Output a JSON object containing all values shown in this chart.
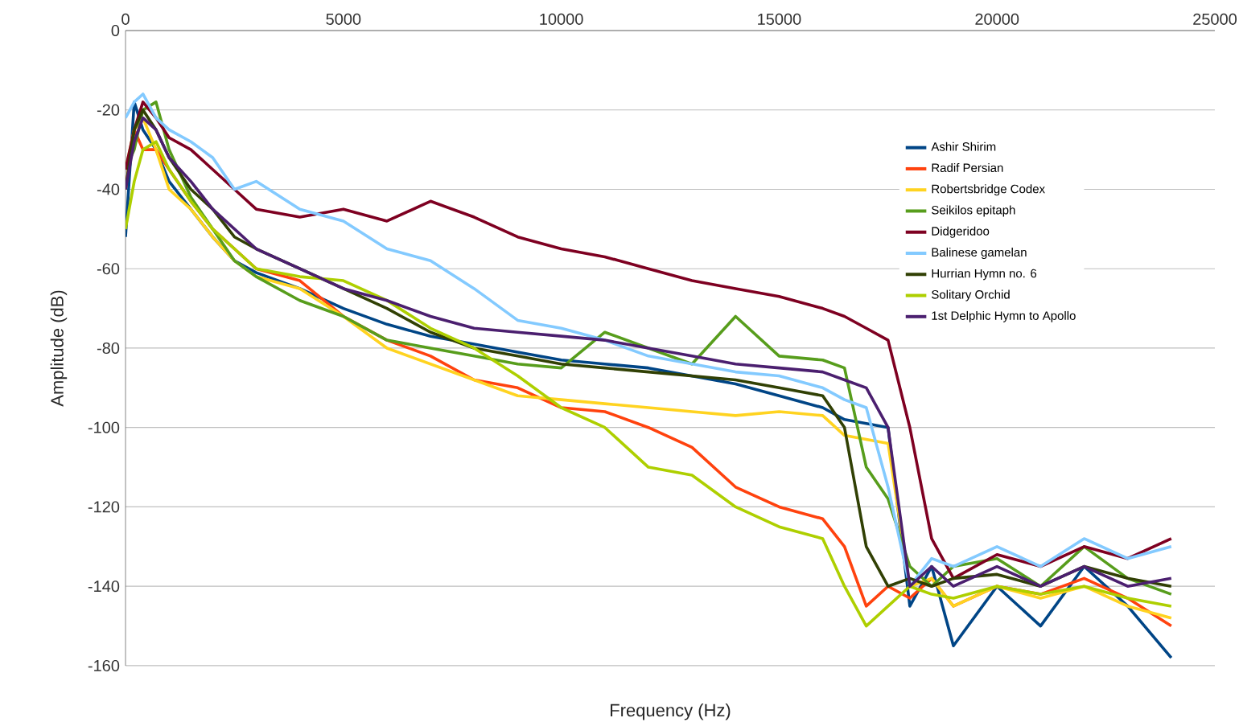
{
  "chart_data": {
    "type": "line",
    "xlabel": "Frequency (Hz)",
    "ylabel": "Amplitude (dB)",
    "xlim": [
      0,
      25000
    ],
    "ylim": [
      -160,
      0
    ],
    "xticks": [
      0,
      5000,
      10000,
      15000,
      20000,
      25000
    ],
    "yticks": [
      -160,
      -140,
      -120,
      -100,
      -80,
      -60,
      -40,
      -20,
      0
    ],
    "grid": "y",
    "legend": "right",
    "x": [
      0,
      200,
      400,
      700,
      1000,
      1500,
      2000,
      2500,
      3000,
      4000,
      5000,
      6000,
      7000,
      8000,
      9000,
      10000,
      11000,
      12000,
      13000,
      14000,
      15000,
      16000,
      16500,
      17000,
      17500,
      18000,
      18500,
      19000,
      20000,
      21000,
      22000,
      23000,
      24000
    ],
    "series": [
      {
        "name": "Ashir Shirim",
        "color": "#004586",
        "values": [
          -52,
          -18,
          -25,
          -30,
          -38,
          -45,
          -52,
          -58,
          -61,
          -65,
          -70,
          -74,
          -77,
          -79,
          -81,
          -83,
          -84,
          -85,
          -87,
          -89,
          -92,
          -95,
          -98,
          -99,
          -100,
          -145,
          -135,
          -155,
          -140,
          -150,
          -135,
          -145,
          -158
        ]
      },
      {
        "name": "Radif Persian",
        "color": "#ff420e",
        "values": [
          -40,
          -25,
          -30,
          -30,
          -35,
          -43,
          -50,
          -55,
          -60,
          -63,
          -72,
          -78,
          -82,
          -88,
          -90,
          -95,
          -96,
          -100,
          -105,
          -115,
          -120,
          -123,
          -130,
          -145,
          -140,
          -143,
          -138,
          -145,
          -140,
          -142,
          -138,
          -143,
          -150
        ]
      },
      {
        "name": "Robertsbridge Codex",
        "color": "#ffd320",
        "values": [
          -35,
          -25,
          -22,
          -30,
          -40,
          -45,
          -52,
          -58,
          -62,
          -65,
          -72,
          -80,
          -84,
          -88,
          -92,
          -93,
          -94,
          -95,
          -96,
          -97,
          -96,
          -97,
          -102,
          -103,
          -104,
          -140,
          -138,
          -145,
          -140,
          -143,
          -140,
          -145,
          -148
        ]
      },
      {
        "name": "Seikilos epitaph",
        "color": "#579d1c",
        "values": [
          -35,
          -30,
          -20,
          -18,
          -30,
          -42,
          -50,
          -58,
          -62,
          -68,
          -72,
          -78,
          -80,
          -82,
          -84,
          -85,
          -76,
          -80,
          -84,
          -72,
          -82,
          -83,
          -85,
          -110,
          -118,
          -135,
          -140,
          -135,
          -133,
          -140,
          -130,
          -138,
          -142
        ]
      },
      {
        "name": "Didgeridoo",
        "color": "#7e0021",
        "values": [
          -35,
          -25,
          -18,
          -22,
          -27,
          -30,
          -35,
          -40,
          -45,
          -47,
          -45,
          -48,
          -43,
          -47,
          -52,
          -55,
          -57,
          -60,
          -63,
          -65,
          -67,
          -70,
          -72,
          -75,
          -78,
          -100,
          -128,
          -138,
          -132,
          -135,
          -130,
          -133,
          -128
        ]
      },
      {
        "name": "Balinese gamelan",
        "color": "#83caff",
        "values": [
          -22,
          -18,
          -16,
          -22,
          -25,
          -28,
          -32,
          -40,
          -38,
          -45,
          -48,
          -55,
          -58,
          -65,
          -73,
          -75,
          -78,
          -82,
          -84,
          -86,
          -87,
          -90,
          -93,
          -95,
          -115,
          -140,
          -133,
          -135,
          -130,
          -135,
          -128,
          -133,
          -130
        ]
      },
      {
        "name": "Hurrian Hymn no. 6",
        "color": "#314004",
        "values": [
          -40,
          -25,
          -20,
          -25,
          -32,
          -40,
          -45,
          -52,
          -55,
          -60,
          -65,
          -70,
          -76,
          -80,
          -82,
          -84,
          -85,
          -86,
          -87,
          -88,
          -90,
          -92,
          -100,
          -130,
          -140,
          -138,
          -140,
          -138,
          -137,
          -140,
          -135,
          -138,
          -140
        ]
      },
      {
        "name": "Solitary Orchid",
        "color": "#aecf00",
        "values": [
          -50,
          -38,
          -30,
          -28,
          -35,
          -43,
          -50,
          -55,
          -60,
          -62,
          -63,
          -68,
          -75,
          -80,
          -87,
          -95,
          -100,
          -110,
          -112,
          -120,
          -125,
          -128,
          -140,
          -150,
          -145,
          -140,
          -142,
          -143,
          -140,
          -142,
          -140,
          -143,
          -145
        ]
      },
      {
        "name": "1st Delphic Hymn to Apollo",
        "color": "#4b1f6f",
        "values": [
          -40,
          -28,
          -22,
          -25,
          -32,
          -38,
          -45,
          -50,
          -55,
          -60,
          -65,
          -68,
          -72,
          -75,
          -76,
          -77,
          -78,
          -80,
          -82,
          -84,
          -85,
          -86,
          -88,
          -90,
          -100,
          -140,
          -135,
          -140,
          -135,
          -140,
          -135,
          -140,
          -138
        ]
      }
    ]
  }
}
